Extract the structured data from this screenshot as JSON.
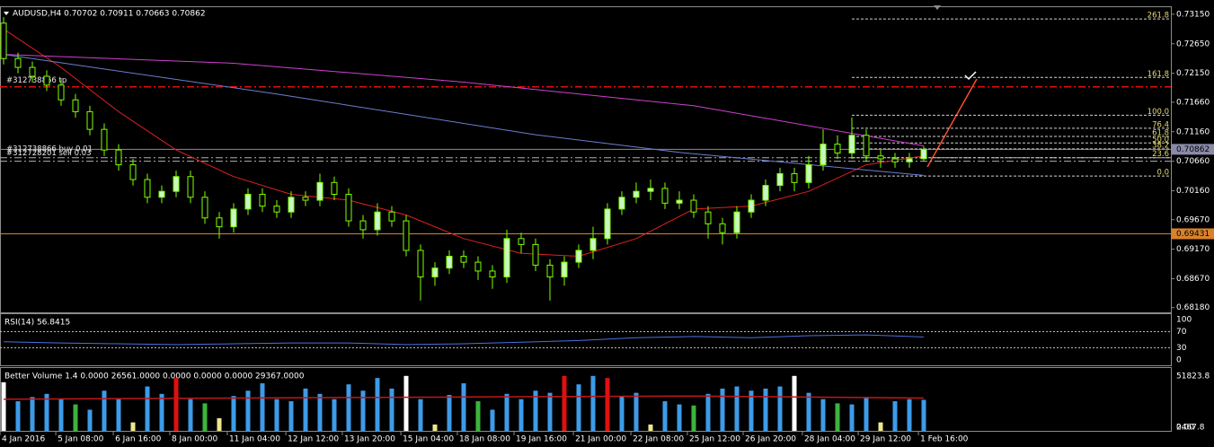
{
  "chart_data": {
    "type": "candlestick",
    "title": "AUDUSD,H4  0.70702 0.70911 0.70663 0.70862",
    "ylim": [
      0.681,
      0.7327
    ],
    "yticks": [
      {
        "value": 0.7315,
        "label": "0.73150"
      },
      {
        "value": 0.7265,
        "label": "0.72650"
      },
      {
        "value": 0.7215,
        "label": "0.72150"
      },
      {
        "value": 0.7166,
        "label": "0.71660"
      },
      {
        "value": 0.7116,
        "label": "0.71160"
      },
      {
        "value": 0.7066,
        "label": "0.70660"
      },
      {
        "value": 0.7016,
        "label": "0.70160"
      },
      {
        "value": 0.6967,
        "label": "0.69670"
      },
      {
        "value": 0.6917,
        "label": "0.69170"
      },
      {
        "value": 0.6867,
        "label": "0.68670"
      },
      {
        "value": 0.6818,
        "label": "0.68180"
      }
    ],
    "xticks": [
      {
        "value": -0.25,
        "label": "4 Jan 2016"
      },
      {
        "value": 3.63,
        "label": "5 Jan 08:00"
      },
      {
        "value": 7.63,
        "label": "6 Jan 16:00"
      },
      {
        "value": 11.56,
        "label": "8 Jan 00:00"
      },
      {
        "value": 15.56,
        "label": "11 Jan 04:00"
      },
      {
        "value": 19.63,
        "label": "12 Jan 12:00"
      },
      {
        "value": 23.56,
        "label": "13 Jan 20:00"
      },
      {
        "value": 27.63,
        "label": "15 Jan 04:00"
      },
      {
        "value": 31.56,
        "label": "18 Jan 08:00"
      },
      {
        "value": 35.5,
        "label": "19 Jan 16:00"
      },
      {
        "value": 39.63,
        "label": "21 Jan 00:00"
      },
      {
        "value": 43.63,
        "label": "22 Jan 08:00"
      },
      {
        "value": 47.56,
        "label": "25 Jan 12:00"
      },
      {
        "value": 51.44,
        "label": "26 Jan 20:00"
      },
      {
        "value": 55.56,
        "label": "28 Jan 04:00"
      },
      {
        "value": 59.44,
        "label": "29 Jan 12:00"
      },
      {
        "value": 63.63,
        "label": "1 Feb 16:00"
      }
    ],
    "bull_color": "#c8f7c0",
    "bear_color": "#000000",
    "wick_color": "#7fff00",
    "ohlc": {
      "open": [
        0.73,
        0.724,
        0.7225,
        0.721,
        0.7195,
        0.717,
        0.715,
        0.712,
        0.7085,
        0.706,
        0.7035,
        0.7005,
        0.7015,
        0.704,
        0.7005,
        0.697,
        0.6955,
        0.6985,
        0.701,
        0.699,
        0.698,
        0.7005,
        0.7,
        0.703,
        0.701,
        0.6965,
        0.695,
        0.698,
        0.6965,
        0.6915,
        0.687,
        0.6885,
        0.6905,
        0.6895,
        0.688,
        0.687,
        0.6935,
        0.6925,
        0.689,
        0.687,
        0.6895,
        0.6915,
        0.6935,
        0.6985,
        0.7005,
        0.7015,
        0.702,
        0.6995,
        0.7,
        0.698,
        0.696,
        0.6945,
        0.698,
        0.7,
        0.7025,
        0.7045,
        0.703,
        0.706,
        0.7095,
        0.708,
        0.711,
        0.7075,
        0.707,
        0.7065,
        0.70702
      ],
      "high": [
        0.731,
        0.725,
        0.7235,
        0.722,
        0.7205,
        0.718,
        0.716,
        0.713,
        0.7095,
        0.707,
        0.7045,
        0.7025,
        0.705,
        0.705,
        0.7015,
        0.698,
        0.6995,
        0.702,
        0.702,
        0.7,
        0.7015,
        0.7015,
        0.7045,
        0.704,
        0.702,
        0.6975,
        0.6995,
        0.699,
        0.6975,
        0.6925,
        0.6895,
        0.6915,
        0.6915,
        0.6905,
        0.689,
        0.695,
        0.6945,
        0.6935,
        0.69,
        0.6905,
        0.6925,
        0.6955,
        0.6995,
        0.7015,
        0.703,
        0.7035,
        0.703,
        0.7015,
        0.701,
        0.699,
        0.697,
        0.699,
        0.701,
        0.7035,
        0.7055,
        0.7055,
        0.7075,
        0.712,
        0.711,
        0.714,
        0.712,
        0.7085,
        0.708,
        0.708,
        0.70911
      ],
      "low": [
        0.723,
        0.7215,
        0.72,
        0.7185,
        0.716,
        0.714,
        0.711,
        0.7075,
        0.705,
        0.7025,
        0.6995,
        0.6995,
        0.7005,
        0.6995,
        0.696,
        0.6935,
        0.6945,
        0.6975,
        0.698,
        0.697,
        0.697,
        0.699,
        0.699,
        0.7,
        0.6955,
        0.6935,
        0.694,
        0.6955,
        0.6905,
        0.683,
        0.6855,
        0.6875,
        0.6885,
        0.6865,
        0.685,
        0.686,
        0.691,
        0.688,
        0.683,
        0.6855,
        0.6885,
        0.69,
        0.6925,
        0.6975,
        0.6995,
        0.7,
        0.6985,
        0.6985,
        0.697,
        0.6935,
        0.6925,
        0.6935,
        0.697,
        0.699,
        0.7015,
        0.7015,
        0.702,
        0.705,
        0.707,
        0.707,
        0.7065,
        0.7055,
        0.7055,
        0.7055,
        0.70663
      ],
      "close": [
        0.724,
        0.7225,
        0.721,
        0.7195,
        0.717,
        0.715,
        0.712,
        0.7085,
        0.706,
        0.7035,
        0.7005,
        0.7015,
        0.704,
        0.7005,
        0.697,
        0.6955,
        0.6985,
        0.701,
        0.699,
        0.698,
        0.7005,
        0.7,
        0.703,
        0.701,
        0.6965,
        0.695,
        0.698,
        0.6965,
        0.6915,
        0.687,
        0.6885,
        0.6905,
        0.6895,
        0.688,
        0.687,
        0.6935,
        0.6925,
        0.689,
        0.687,
        0.6895,
        0.6915,
        0.6935,
        0.6985,
        0.7005,
        0.7015,
        0.702,
        0.6995,
        0.7,
        0.698,
        0.696,
        0.6945,
        0.698,
        0.7,
        0.7025,
        0.7045,
        0.703,
        0.706,
        0.7095,
        0.708,
        0.711,
        0.7075,
        0.707,
        0.7065,
        0.707,
        0.70862
      ]
    },
    "lines": [
      {
        "color": "#e02020",
        "x": [
          0,
          4,
          8,
          12,
          16,
          20,
          24,
          28,
          32,
          36,
          40,
          44,
          48,
          52,
          56,
          60,
          64
        ],
        "values": [
          0.729,
          0.7225,
          0.715,
          0.7085,
          0.704,
          0.701,
          0.7,
          0.6975,
          0.6935,
          0.691,
          0.6905,
          0.6935,
          0.6985,
          0.699,
          0.7015,
          0.706,
          0.7075
        ]
      },
      {
        "color": "#d040d0",
        "x": [
          0,
          16,
          32,
          48,
          64
        ],
        "values": [
          0.7247,
          0.7232,
          0.72,
          0.716,
          0.7092
        ]
      },
      {
        "color": "#6a7fd0",
        "x": [
          0,
          19,
          37,
          47,
          64
        ],
        "values": [
          0.7247,
          0.718,
          0.7111,
          0.7081,
          0.7042
        ]
      }
    ],
    "hlines": [
      {
        "value": 0.7192,
        "color": "#e01010",
        "style": "dashdot"
      },
      {
        "value": 0.69431,
        "color": "#d9822b",
        "style": "solid",
        "label": "0.69431"
      },
      {
        "value": 0.70862,
        "color": "#8a8aa8",
        "style": "solid",
        "label": "0.70862"
      },
      {
        "value": 0.7072,
        "color": "#b0b0b0",
        "style": "dashdot"
      },
      {
        "value": 0.7066,
        "color": "#b0b0b0",
        "style": "dashdot"
      }
    ],
    "orders": [
      {
        "value": 0.7203,
        "label": "#312738866 tp"
      },
      {
        "value": 0.7087,
        "label": "#312738866 buy 0.01"
      },
      {
        "value": 0.708,
        "label": "#312728201 sell 0.03"
      }
    ],
    "fib": {
      "from_index": 59,
      "color": "#e6d96b",
      "levels": [
        {
          "value": 0.7307,
          "label": "261.8"
        },
        {
          "value": 0.7208,
          "label": "161.8"
        },
        {
          "value": 0.7144,
          "label": "100.0"
        },
        {
          "value": 0.7122,
          "label": "76.4"
        },
        {
          "value": 0.7108,
          "label": "61.8"
        },
        {
          "value": 0.7097,
          "label": "50.0"
        },
        {
          "value": 0.7087,
          "label": "38.2"
        },
        {
          "value": 0.7072,
          "label": "23.6"
        },
        {
          "value": 0.7041,
          "label": "0.0"
        }
      ]
    },
    "rsi": {
      "label": "RSI(14) 56.8415",
      "color": "#4a6fe0",
      "ylim": [
        0,
        100
      ],
      "yticks": [
        100,
        70,
        30,
        0
      ],
      "levels": [
        70,
        30
      ],
      "x": [
        0,
        4,
        8,
        12,
        16,
        20,
        24,
        28,
        32,
        36,
        40,
        44,
        48,
        52,
        56,
        60,
        64
      ],
      "values": [
        45,
        42,
        40,
        38,
        40,
        42,
        42,
        38,
        40,
        44,
        48,
        55,
        58,
        55,
        60,
        62,
        56.8415
      ]
    },
    "volume": {
      "label": "Better Volume 1.4 0.0000 26561.0000 0.0000 0.0000 0.0000 29367.0000",
      "ylim": [
        0,
        51823.8
      ],
      "yticks": [
        51823.8,
        2467.8,
        {
          "value": 0,
          "label": "0.00"
        }
      ],
      "palette": [
        "#3d9be9",
        "#e01010",
        "#ffffff",
        "#3cb43c",
        "#f0e68c"
      ],
      "color_index": [
        2,
        0,
        0,
        0,
        0,
        3,
        0,
        0,
        0,
        4,
        0,
        0,
        1,
        0,
        3,
        4,
        0,
        0,
        0,
        0,
        0,
        0,
        0,
        0,
        0,
        0,
        0,
        0,
        2,
        0,
        4,
        0,
        0,
        3,
        0,
        0,
        0,
        0,
        0,
        1,
        0,
        0,
        1,
        0,
        0,
        4,
        0,
        0,
        3,
        0,
        0,
        0,
        0,
        0,
        0,
        2,
        0,
        0,
        3,
        0,
        0,
        4,
        0,
        0,
        0
      ],
      "values": [
        46000,
        28000,
        32000,
        35000,
        30000,
        25000,
        20000,
        38000,
        30000,
        8000,
        42000,
        35000,
        50000,
        30000,
        26000,
        12000,
        33000,
        38000,
        45000,
        30000,
        28000,
        40000,
        35000,
        30000,
        44000,
        38000,
        50000,
        40000,
        52000,
        30000,
        6000,
        34000,
        45000,
        28000,
        20000,
        35000,
        30000,
        38000,
        36000,
        52000,
        44000,
        52000,
        50000,
        33000,
        36000,
        6000,
        28000,
        25000,
        24000,
        35000,
        40000,
        42000,
        38000,
        40000,
        42000,
        52000,
        36000,
        30000,
        26000,
        25000,
        32000,
        8000,
        28000,
        30000,
        29367
      ],
      "avg_color": "#c01818",
      "avg_x": [
        0,
        16,
        32,
        48,
        64
      ],
      "avg": [
        30000,
        31000,
        32000,
        33000,
        31000
      ]
    }
  }
}
